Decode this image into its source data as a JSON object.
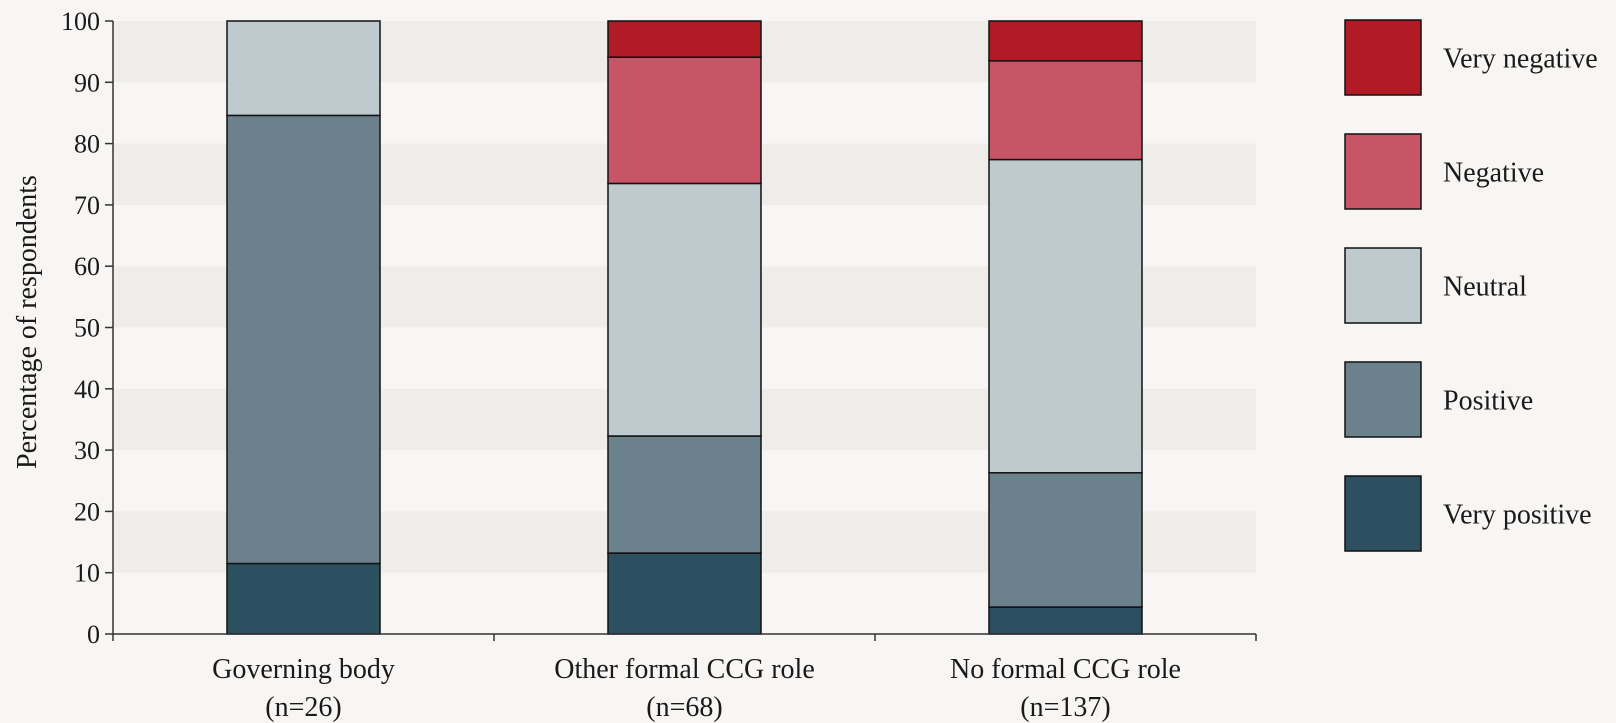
{
  "chart_data": {
    "type": "bar",
    "stacked": true,
    "title": "",
    "xlabel": "",
    "ylabel": "Percentage of respondents",
    "ylim": [
      0,
      100
    ],
    "yticks": [
      0,
      10,
      20,
      30,
      40,
      50,
      60,
      70,
      80,
      90,
      100
    ],
    "grid": "alternating horizontal bands",
    "legend_position": "right",
    "categories": [
      {
        "label": "Governing body",
        "n": "(n=26)"
      },
      {
        "label": "Other formal CCG role",
        "n": "(n=68)"
      },
      {
        "label": "No formal CCG role",
        "n": "(n=137)"
      }
    ],
    "series": [
      {
        "name": "Very positive",
        "color": "#2d5060",
        "values": [
          11.5,
          13.2,
          4.4
        ]
      },
      {
        "name": "Positive",
        "color": "#6b828c",
        "values": [
          73.1,
          19.1,
          21.9
        ]
      },
      {
        "name": "Neutral",
        "color": "#bfcacf",
        "values": [
          15.4,
          41.2,
          51.1
        ]
      },
      {
        "name": "Negative",
        "color": "#c85566",
        "values": [
          0,
          20.6,
          16.1
        ]
      },
      {
        "name": "Very negative",
        "color": "#b01b25",
        "values": [
          0,
          5.9,
          6.5
        ]
      }
    ],
    "legend_order": [
      "Very negative",
      "Negative",
      "Neutral",
      "Positive",
      "Very positive"
    ]
  },
  "colors": {
    "background": "#f7f6f4",
    "band": "#efedea",
    "axis": "#333333",
    "bar_outline": "#111111"
  }
}
